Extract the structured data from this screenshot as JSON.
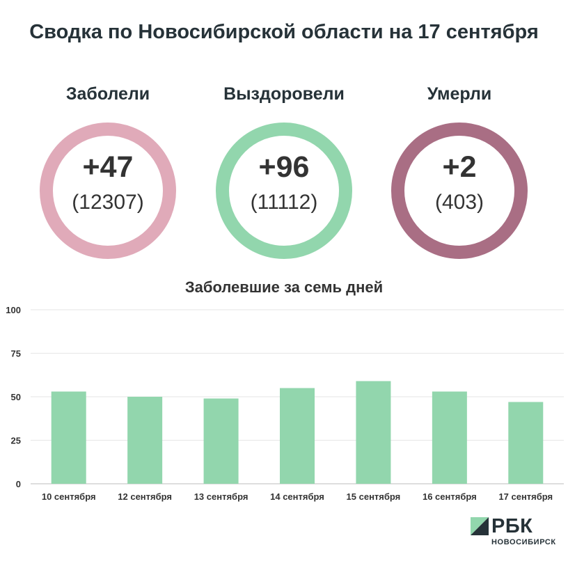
{
  "title": "Сводка по Новосибирской области на 17 сентября",
  "stats": [
    {
      "label": "Заболели",
      "delta": "+47",
      "total": "(12307)",
      "color": "#e0aab9"
    },
    {
      "label": "Выздоровели",
      "delta": "+96",
      "total": "(11112)",
      "color": "#92d6ad"
    },
    {
      "label": "Умерли",
      "delta": "+2",
      "total": "(403)",
      "color": "#a96e84"
    }
  ],
  "chart_data": {
    "type": "bar",
    "title": "Заболевшие за семь дней",
    "categories": [
      "10 сентября",
      "12 сентября",
      "13 сентября",
      "14 сентября",
      "15 сентября",
      "16 сентября",
      "17 сентября"
    ],
    "values": [
      53,
      50,
      49,
      55,
      59,
      53,
      47
    ],
    "ylim": [
      0,
      100
    ],
    "yticks": [
      0,
      25,
      50,
      75,
      100
    ],
    "grid": true,
    "bar_color": "#92d6ad"
  },
  "logo": {
    "name": "РБК",
    "sub": "НОВОСИБИРСК",
    "colors": [
      "#92d6ad",
      "#263238"
    ]
  }
}
